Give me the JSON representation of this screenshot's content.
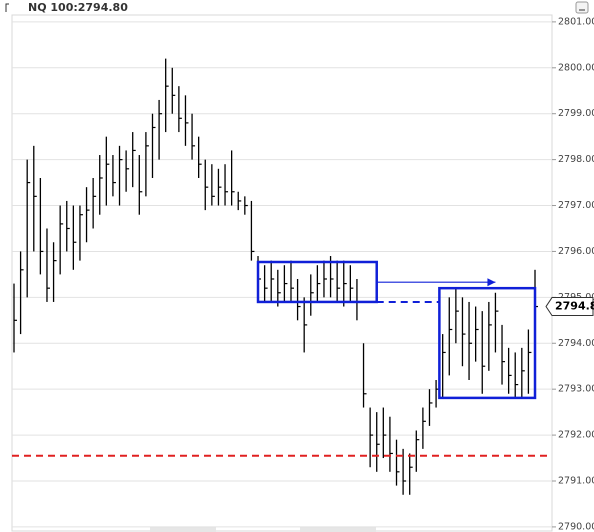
{
  "chart_data": {
    "type": "ohlc",
    "title": "NQ 100:2794.80",
    "color": "#000000",
    "low": [
      2793.8,
      2794.2,
      2795.0,
      2796.0,
      2795.5,
      2794.9,
      2794.9,
      2795.5,
      2796.0,
      2795.6,
      2795.8,
      2796.2,
      2796.5,
      2796.8,
      2797.0,
      2797.2,
      2797.0,
      2797.3,
      2797.4,
      2796.8,
      2797.2,
      2797.6,
      2798.0,
      2798.6,
      2799.0,
      2798.6,
      2798.3,
      2798.0,
      2797.6,
      2796.9,
      2797.0,
      2797.0,
      2797.0,
      2797.0,
      2796.9,
      2796.8,
      2795.8,
      2795.1,
      2794.9,
      2794.9,
      2794.8,
      2794.9,
      2794.9,
      2794.5,
      2793.8,
      2794.6,
      2794.9,
      2795.0,
      2795.0,
      2794.9,
      2794.8,
      2794.9,
      2794.5,
      2792.6,
      2791.3,
      2791.2,
      2791.5,
      2791.2,
      2790.9,
      2790.7,
      2790.7,
      2791.2,
      2791.7,
      2792.2,
      2792.6,
      2792.8,
      2793.3,
      2794.0,
      2793.5,
      2793.2,
      2793.6,
      2792.9,
      2793.4,
      2793.8,
      2793.1,
      2792.9,
      2792.8,
      2792.8,
      2792.9,
      2793.3
    ],
    "high": [
      2795.3,
      2796.0,
      2798.0,
      2798.3,
      2797.6,
      2796.5,
      2796.2,
      2797.0,
      2797.1,
      2797.0,
      2797.0,
      2797.4,
      2797.6,
      2798.1,
      2798.5,
      2798.1,
      2798.3,
      2798.2,
      2798.6,
      2798.1,
      2798.6,
      2799.0,
      2799.3,
      2800.2,
      2800.0,
      2799.6,
      2799.4,
      2799.0,
      2798.5,
      2798.0,
      2797.9,
      2797.8,
      2797.9,
      2798.2,
      2797.3,
      2797.2,
      2797.1,
      2795.9,
      2795.7,
      2795.8,
      2795.6,
      2795.7,
      2795.8,
      2795.4,
      2795.0,
      2795.5,
      2795.7,
      2795.8,
      2795.9,
      2795.8,
      2795.8,
      2795.7,
      2795.4,
      2794.0,
      2792.6,
      2792.5,
      2792.6,
      2792.4,
      2791.9,
      2791.7,
      2791.6,
      2792.1,
      2792.6,
      2793.0,
      2793.2,
      2794.2,
      2795.0,
      2795.2,
      2795.0,
      2794.9,
      2794.8,
      2794.7,
      2794.9,
      2795.1,
      2794.4,
      2793.9,
      2793.8,
      2793.9,
      2794.3,
      2795.6
    ],
    "close": [
      2794.5,
      2795.6,
      2797.5,
      2797.2,
      2796.0,
      2795.2,
      2795.8,
      2796.6,
      2796.5,
      2796.2,
      2796.8,
      2796.9,
      2797.2,
      2797.6,
      2797.9,
      2797.5,
      2798.0,
      2797.8,
      2798.2,
      2797.3,
      2798.3,
      2798.7,
      2799.0,
      2799.6,
      2799.4,
      2798.9,
      2798.8,
      2798.3,
      2797.9,
      2797.4,
      2797.2,
      2797.4,
      2797.3,
      2797.3,
      2797.1,
      2797.0,
      2796.0,
      2795.4,
      2795.2,
      2795.4,
      2795.1,
      2795.3,
      2795.2,
      2794.8,
      2794.4,
      2795.1,
      2795.3,
      2795.4,
      2795.4,
      2795.2,
      2795.3,
      2795.2,
      2794.9,
      2792.9,
      2792.0,
      2791.8,
      2792.0,
      2791.6,
      2791.2,
      2791.0,
      2791.3,
      2791.9,
      2792.3,
      2792.7,
      2793.0,
      2793.8,
      2794.3,
      2794.7,
      2794.2,
      2794.0,
      2794.3,
      2793.5,
      2794.4,
      2794.7,
      2793.6,
      2793.3,
      2793.1,
      2793.4,
      2793.8,
      2794.8
    ],
    "ylim": [
      2789.9,
      2801.15
    ],
    "yticks": [
      {
        "value": 2790,
        "label": "2790.00"
      },
      {
        "value": 2791,
        "label": "2791.00"
      },
      {
        "value": 2792,
        "label": "2792.00"
      },
      {
        "value": 2793,
        "label": "2793.00"
      },
      {
        "value": 2794,
        "label": "2794.00"
      },
      {
        "value": 2795,
        "label": "2795.00"
      },
      {
        "value": 2796,
        "label": "2796.00"
      },
      {
        "value": 2797,
        "label": "2797.00"
      },
      {
        "value": 2798,
        "label": "2798.00"
      },
      {
        "value": 2799,
        "label": "2799.00"
      },
      {
        "value": 2800,
        "label": "2800.00"
      },
      {
        "value": 2801,
        "label": "2801.00"
      }
    ],
    "grid": true,
    "last": {
      "value": 2794.8,
      "label": "2794.8"
    },
    "boxes": [
      {
        "x": [
          37,
          55
        ],
        "y": [
          2794.9,
          2795.77
        ],
        "color": "#1020d8"
      },
      {
        "x": [
          64.5,
          79
        ],
        "y": [
          2792.81,
          2795.2
        ],
        "color": "#1020d8"
      }
    ],
    "dashed_segment": {
      "x": [
        55,
        64.5
      ],
      "y": 2794.9,
      "color": "#1020d8"
    },
    "arrow": {
      "x": [
        55,
        73
      ],
      "y": 2795.33,
      "color": "#1020d8"
    },
    "level_line": {
      "y": 2791.55,
      "color": "#e02020"
    }
  }
}
